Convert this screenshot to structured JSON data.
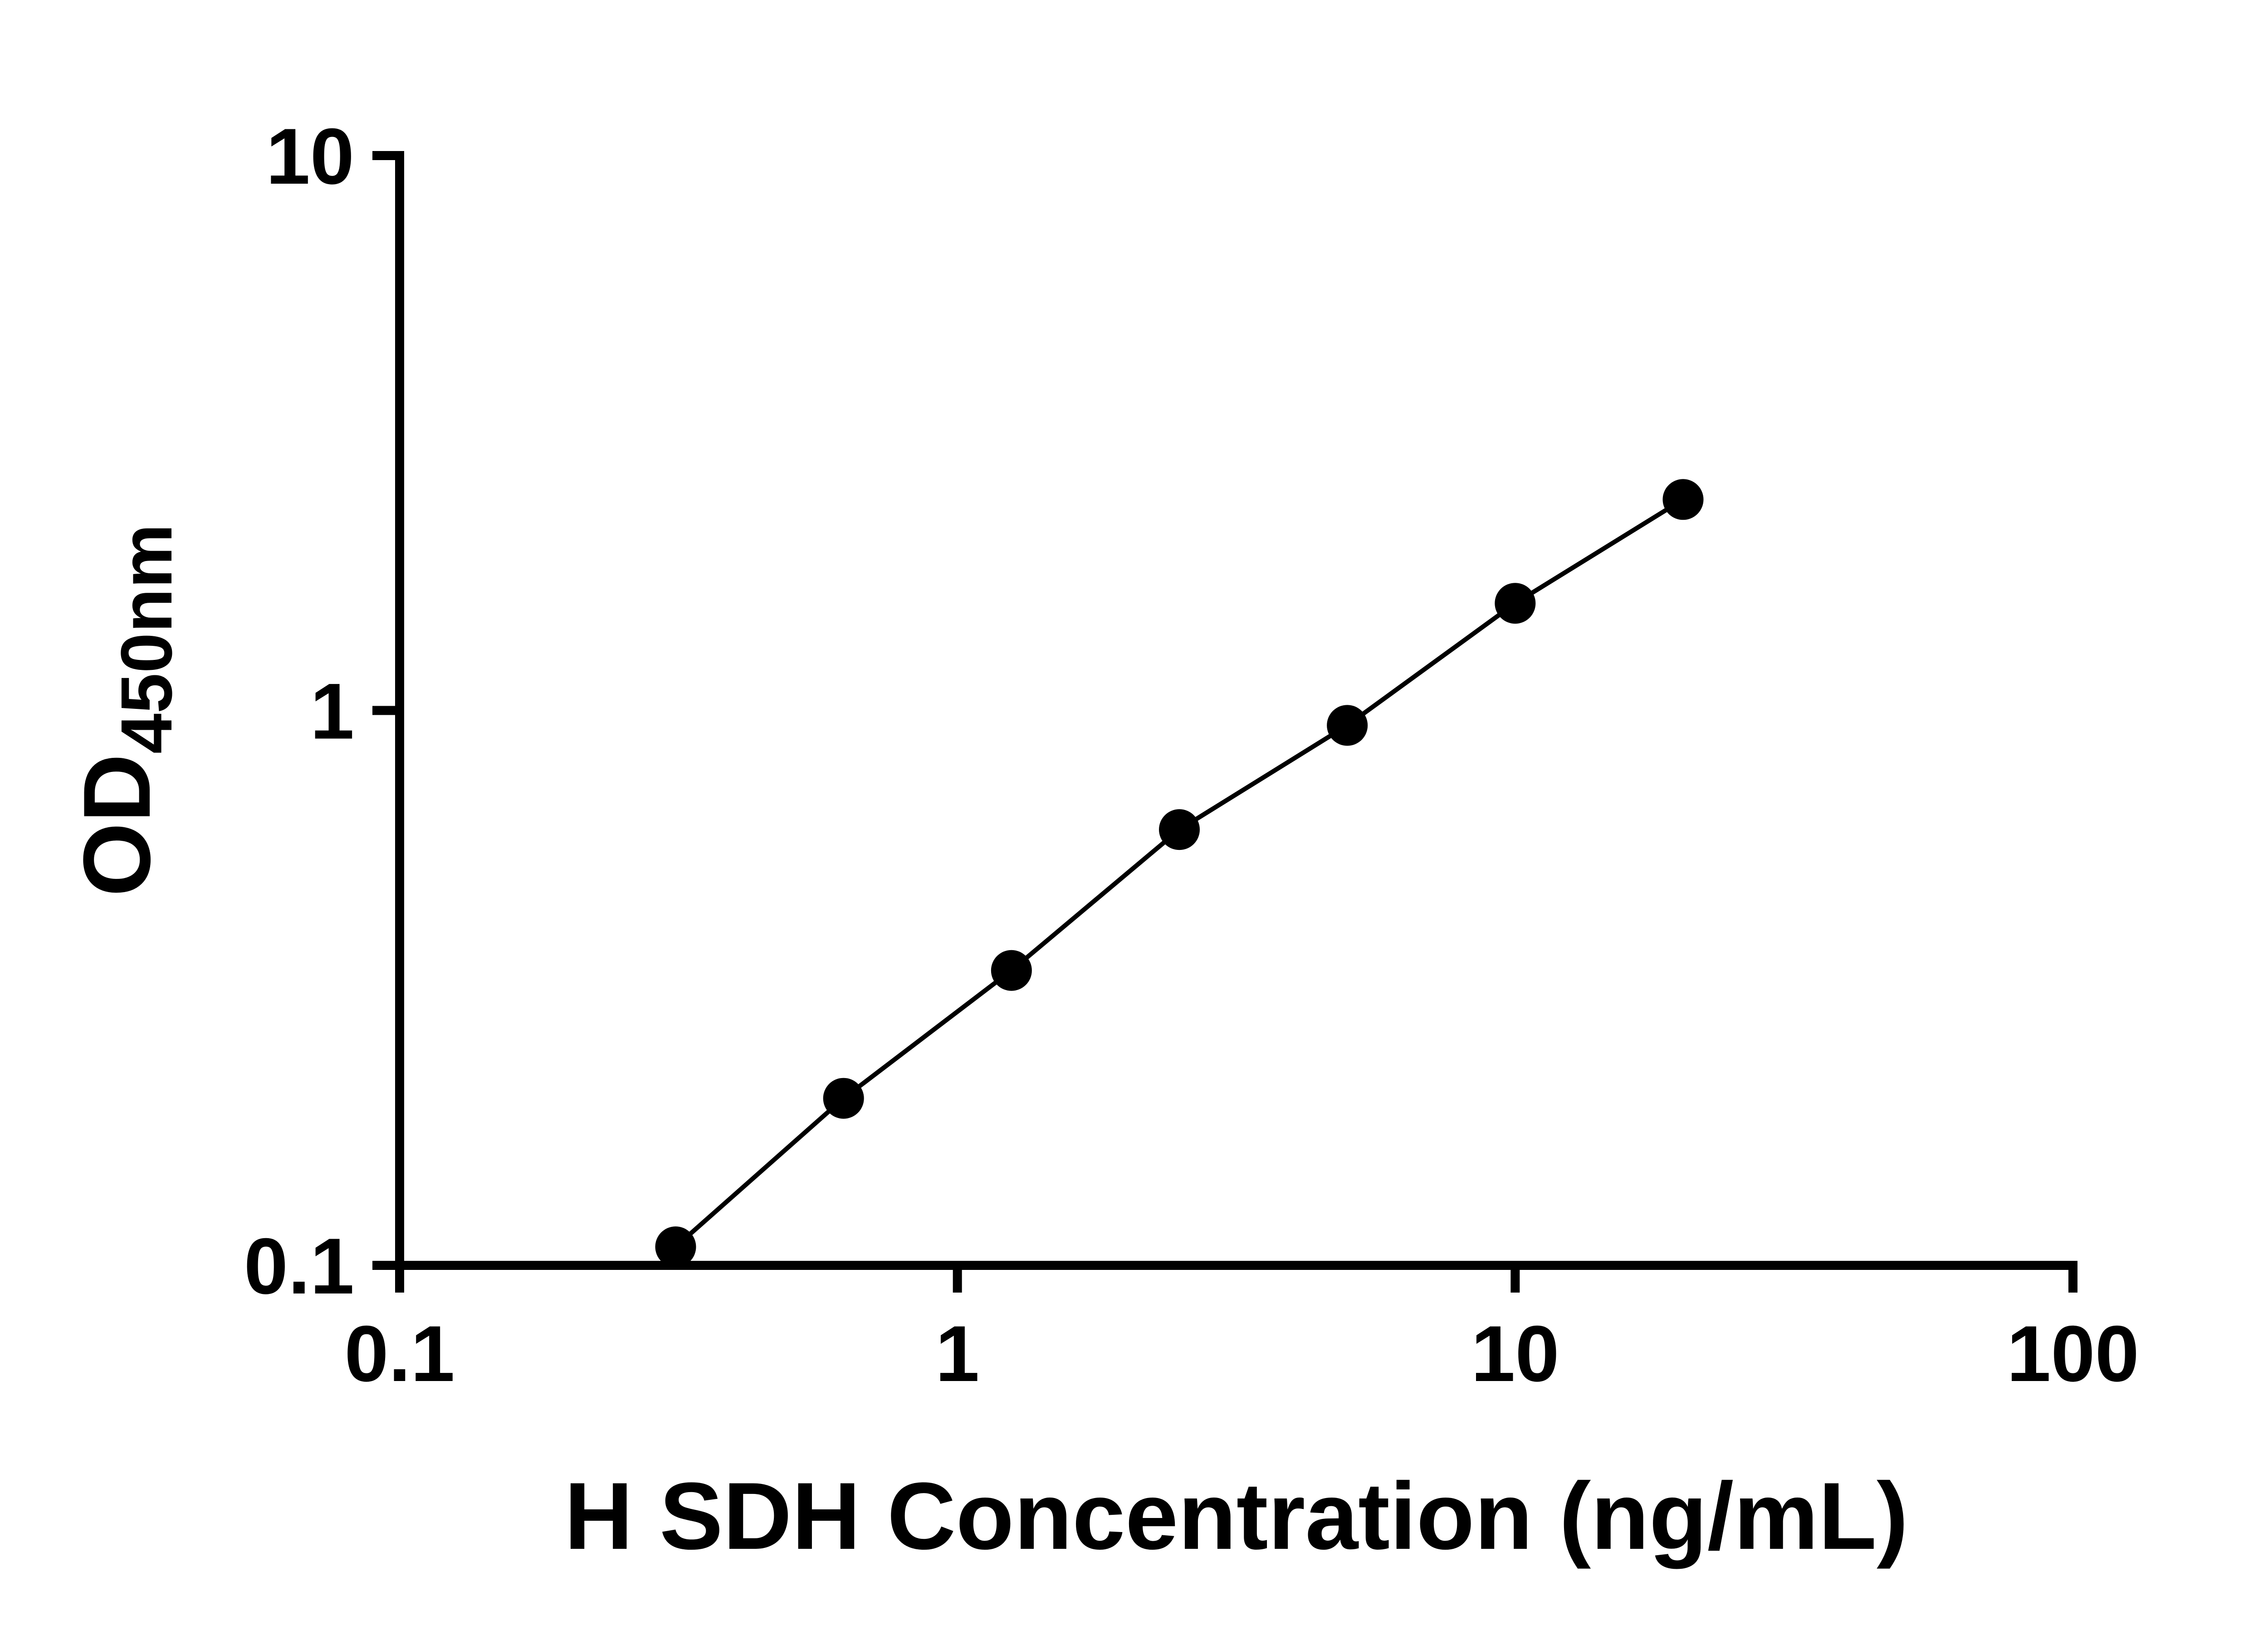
{
  "page": {
    "background": "#ffffff"
  },
  "chart_data": {
    "type": "line",
    "title": "",
    "xlabel": "H SDH Concentration (ng/mL)",
    "ylabel_main": "OD",
    "ylabel_sub": "450nm",
    "x": [
      0.3125,
      0.625,
      1.25,
      2.5,
      5,
      10,
      20
    ],
    "y": [
      0.108,
      0.2,
      0.34,
      0.61,
      0.94,
      1.56,
      2.4
    ],
    "xscale": "log",
    "yscale": "log",
    "xlim": [
      0.1,
      100
    ],
    "ylim": [
      0.1,
      10
    ],
    "xticks": {
      "values": [
        0.1,
        1,
        10,
        100
      ],
      "labels": [
        "0.1",
        "1",
        "10",
        "100"
      ]
    },
    "yticks": {
      "values": [
        0.1,
        1,
        10
      ],
      "labels": [
        "0.1",
        "1",
        "10"
      ]
    },
    "grid": false,
    "legend": null,
    "colors": {
      "line": "#000000",
      "marker": "#000000",
      "axis": "#000000",
      "background": "#ffffff"
    }
  }
}
